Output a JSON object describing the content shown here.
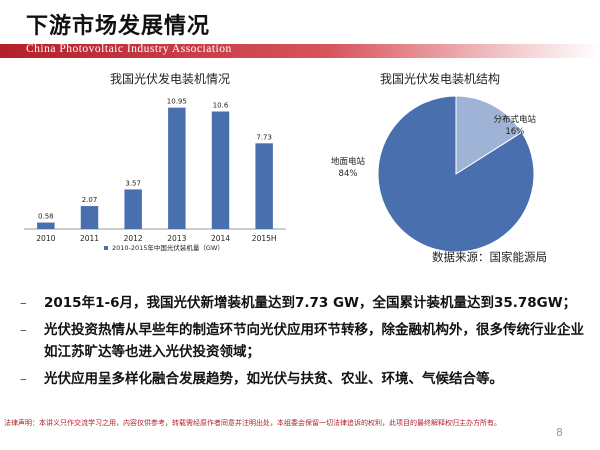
{
  "header": {
    "title": "下游市场发展情况",
    "band_text": "China Photovoltaic Industry Association"
  },
  "chart_data": [
    {
      "type": "bar",
      "title": "我国光伏发电装机情况",
      "categories": [
        "2010",
        "2011",
        "2012",
        "2013",
        "2014",
        "2015H"
      ],
      "series": [
        {
          "name": "2010-2015年中国光伏装机量（GW）",
          "values": [
            0.58,
            2.07,
            3.57,
            10.95,
            10.6,
            7.73
          ]
        }
      ],
      "value_labels": [
        "0.58",
        "2.07",
        "3.57",
        "10.95",
        "10.6",
        "7.73"
      ],
      "ylim": [
        0,
        12
      ],
      "grid": false,
      "legend": "bottom",
      "color": "#4a6fae"
    },
    {
      "type": "pie",
      "title": "我国光伏发电装机结构",
      "slices": [
        {
          "label": "地面电站",
          "percent_label": "84%",
          "value": 84,
          "color": "#4a6fae"
        },
        {
          "label": "分布式电站",
          "percent_label": "16%",
          "value": 16,
          "color": "#9fb3d6"
        }
      ]
    }
  ],
  "source": "数据来源：国家能源局",
  "bullets": [
    "2015年1-6月，我国光伏新增装机量达到7.73 GW，全国累计装机量达到35.78GW；",
    "光伏投资热情从早些年的制造环节向光伏应用环节转移，除金融机构外，很多传统行业企业如江苏旷达等也进入光伏投资领域；",
    "光伏应用呈多样化融合发展趋势，如光伏与扶贫、农业、环境、气候结合等。"
  ],
  "bullet_marker": "–",
  "footer": "法律声明：本讲义只作交流学习之用，内容仅供参考，转载需经原作者同意并注明出处，本组委会保留一切法律追诉的权利，此项目的最终解释权归主办方所有。",
  "page_number": "8"
}
